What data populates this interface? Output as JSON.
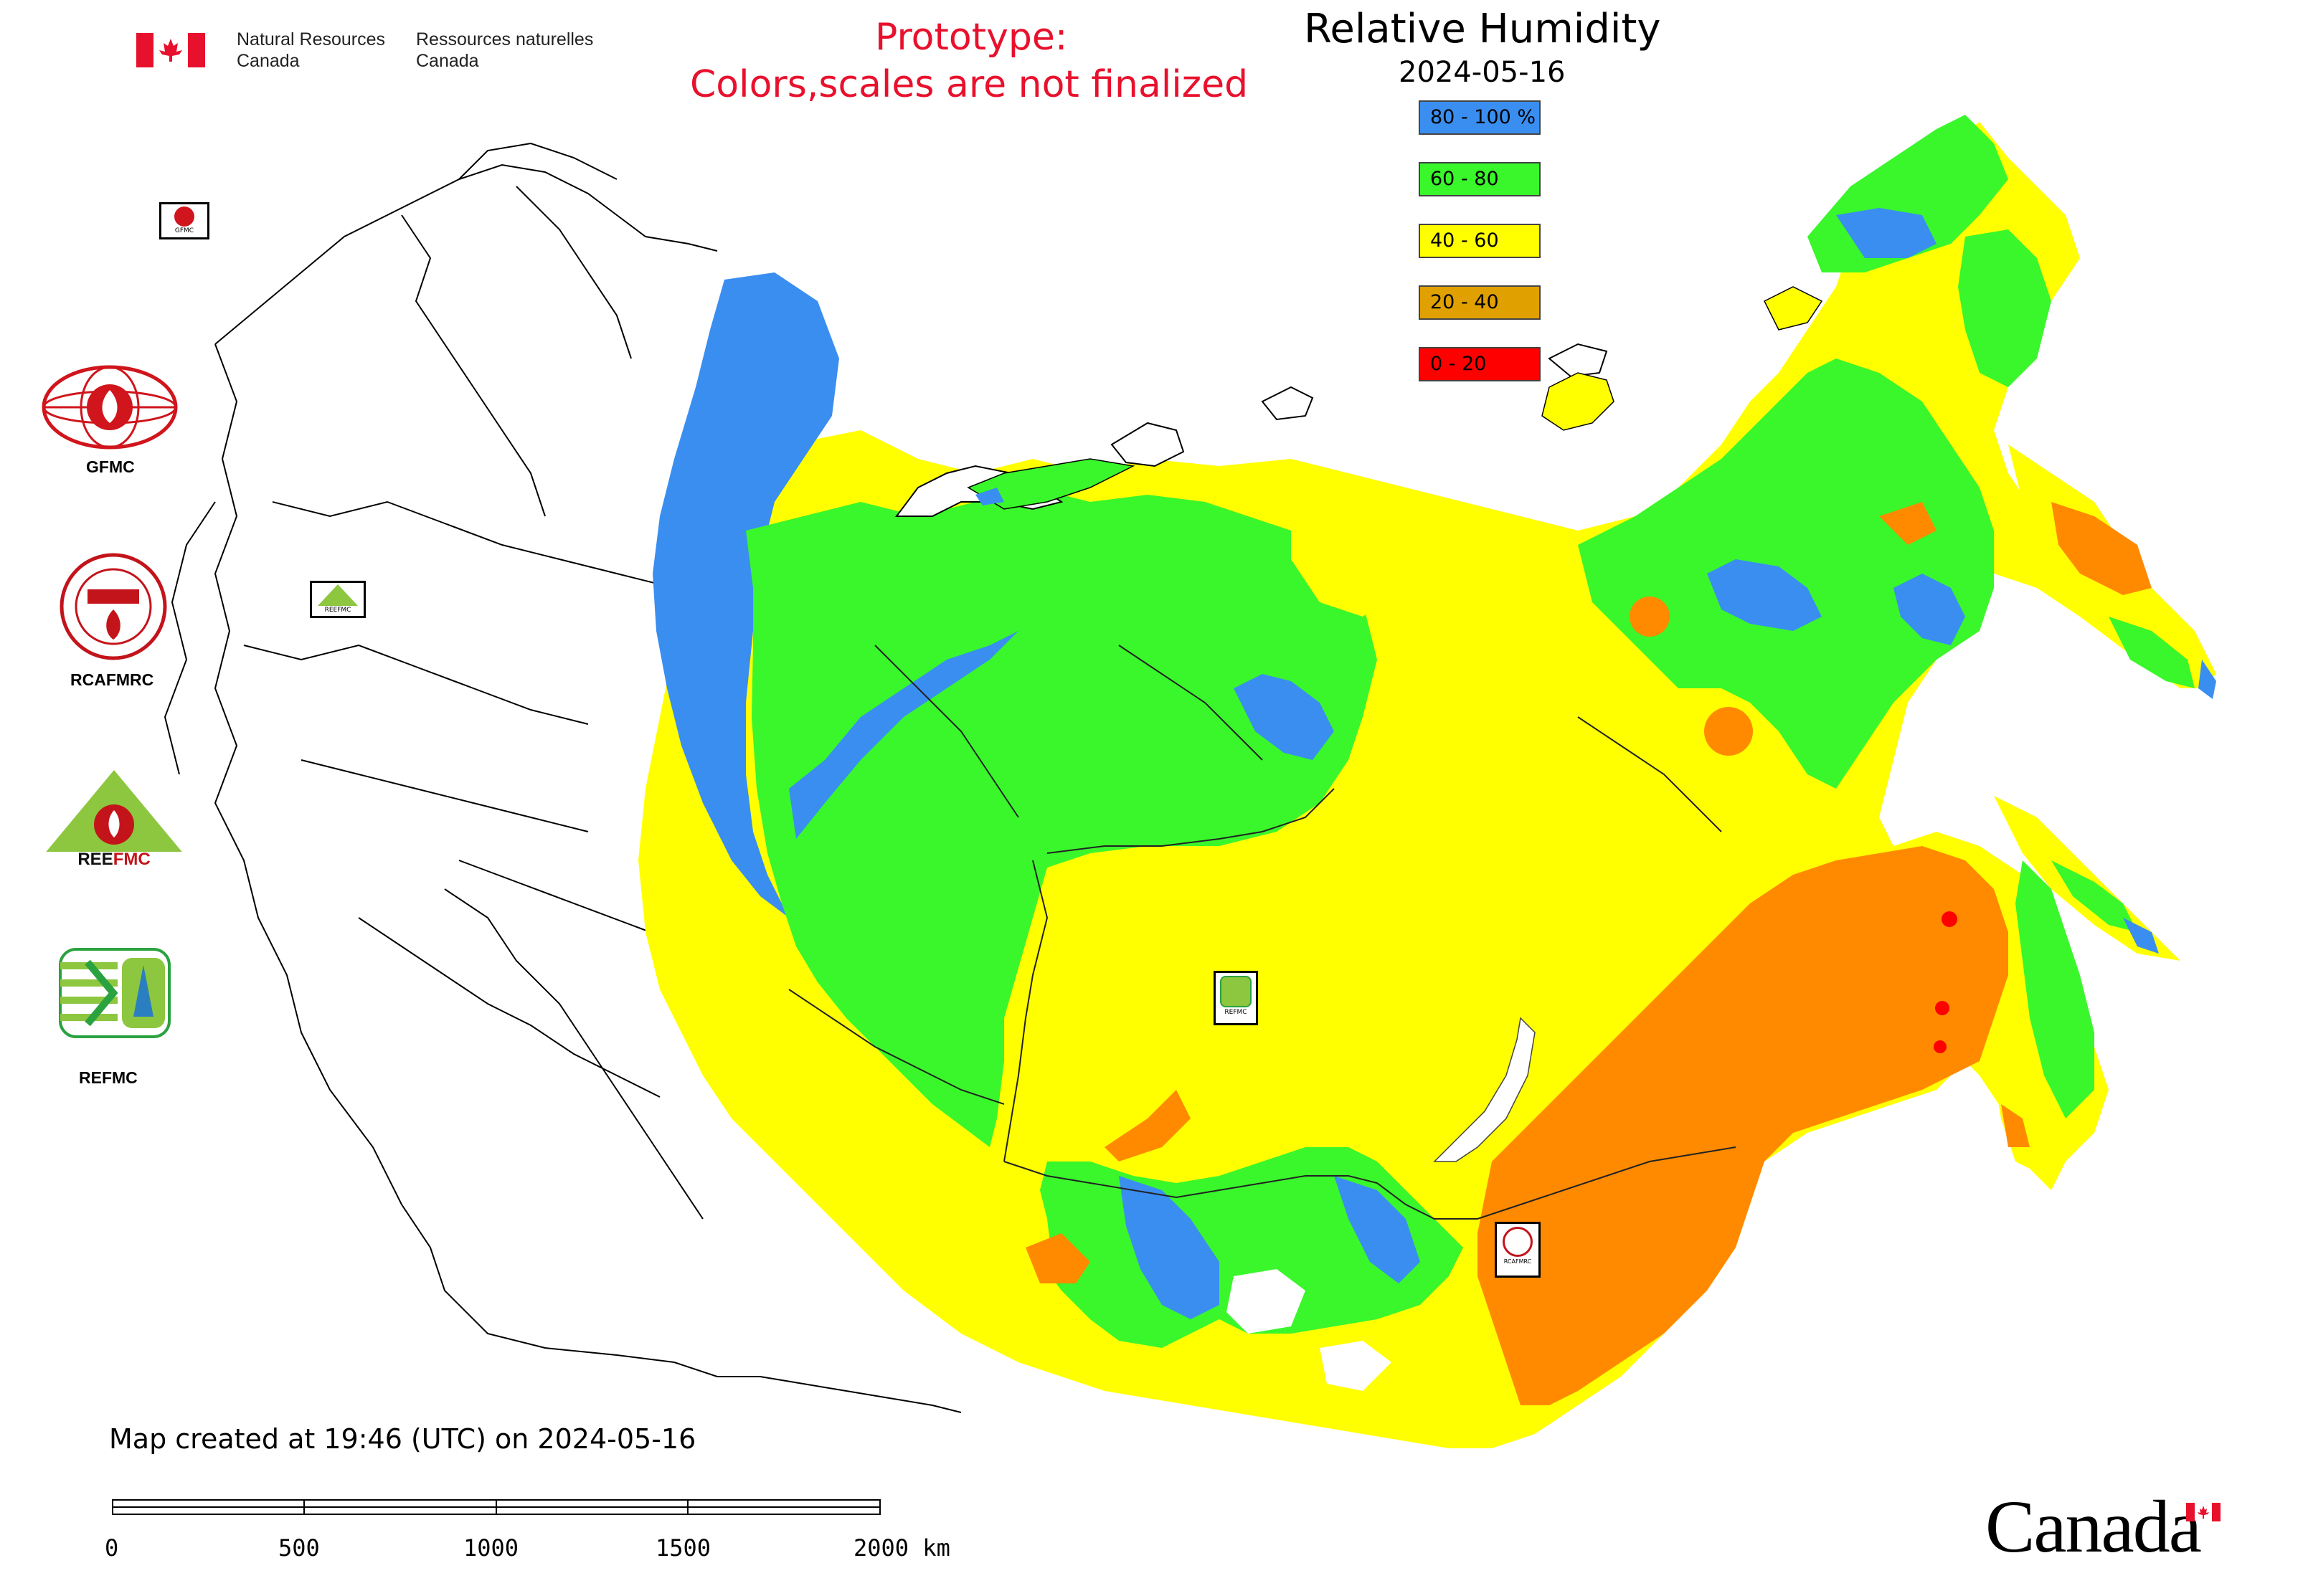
{
  "header": {
    "agency_en": [
      "Natural Resources",
      "Canada"
    ],
    "agency_fr": [
      "Ressources naturelles",
      "Canada"
    ],
    "prototype_line1": "Prototype:",
    "prototype_line2": "Colors,scales are not finalized",
    "title": "Relative Humidity",
    "date": "2024-05-16"
  },
  "legend": [
    {
      "label": "80 - 100 %",
      "color": "#3a8ef0"
    },
    {
      "label": "60 - 80",
      "color": "#39f72b"
    },
    {
      "label": "40 - 60",
      "color": "#ffff00"
    },
    {
      "label": "20 - 40",
      "color": "#e0a000"
    },
    {
      "label": "0 - 20",
      "color": "#ff0000"
    }
  ],
  "map_colors": {
    "very_humid": "#3a8ef0",
    "humid": "#39f72b",
    "moderate": "#ffff00",
    "dry": "#ff8a00",
    "very_dry": "#ff0000",
    "boundary": "#000000"
  },
  "logos": [
    {
      "label": "GFMC"
    },
    {
      "label": "RCAFMRC"
    },
    {
      "label": "REEFMC"
    },
    {
      "label": "REFMC"
    }
  ],
  "map_markers": [
    {
      "label": "GFMC"
    },
    {
      "label": "REEFMC"
    },
    {
      "label": "REFMC"
    },
    {
      "label": "RCAFMRC"
    }
  ],
  "footer": {
    "created": "Map created at 19:46 (UTC) on 2024-05-16",
    "scale_ticks": [
      "0",
      "500",
      "1000",
      "1500",
      "2000 km"
    ],
    "canada_wordmark": "Canada"
  }
}
